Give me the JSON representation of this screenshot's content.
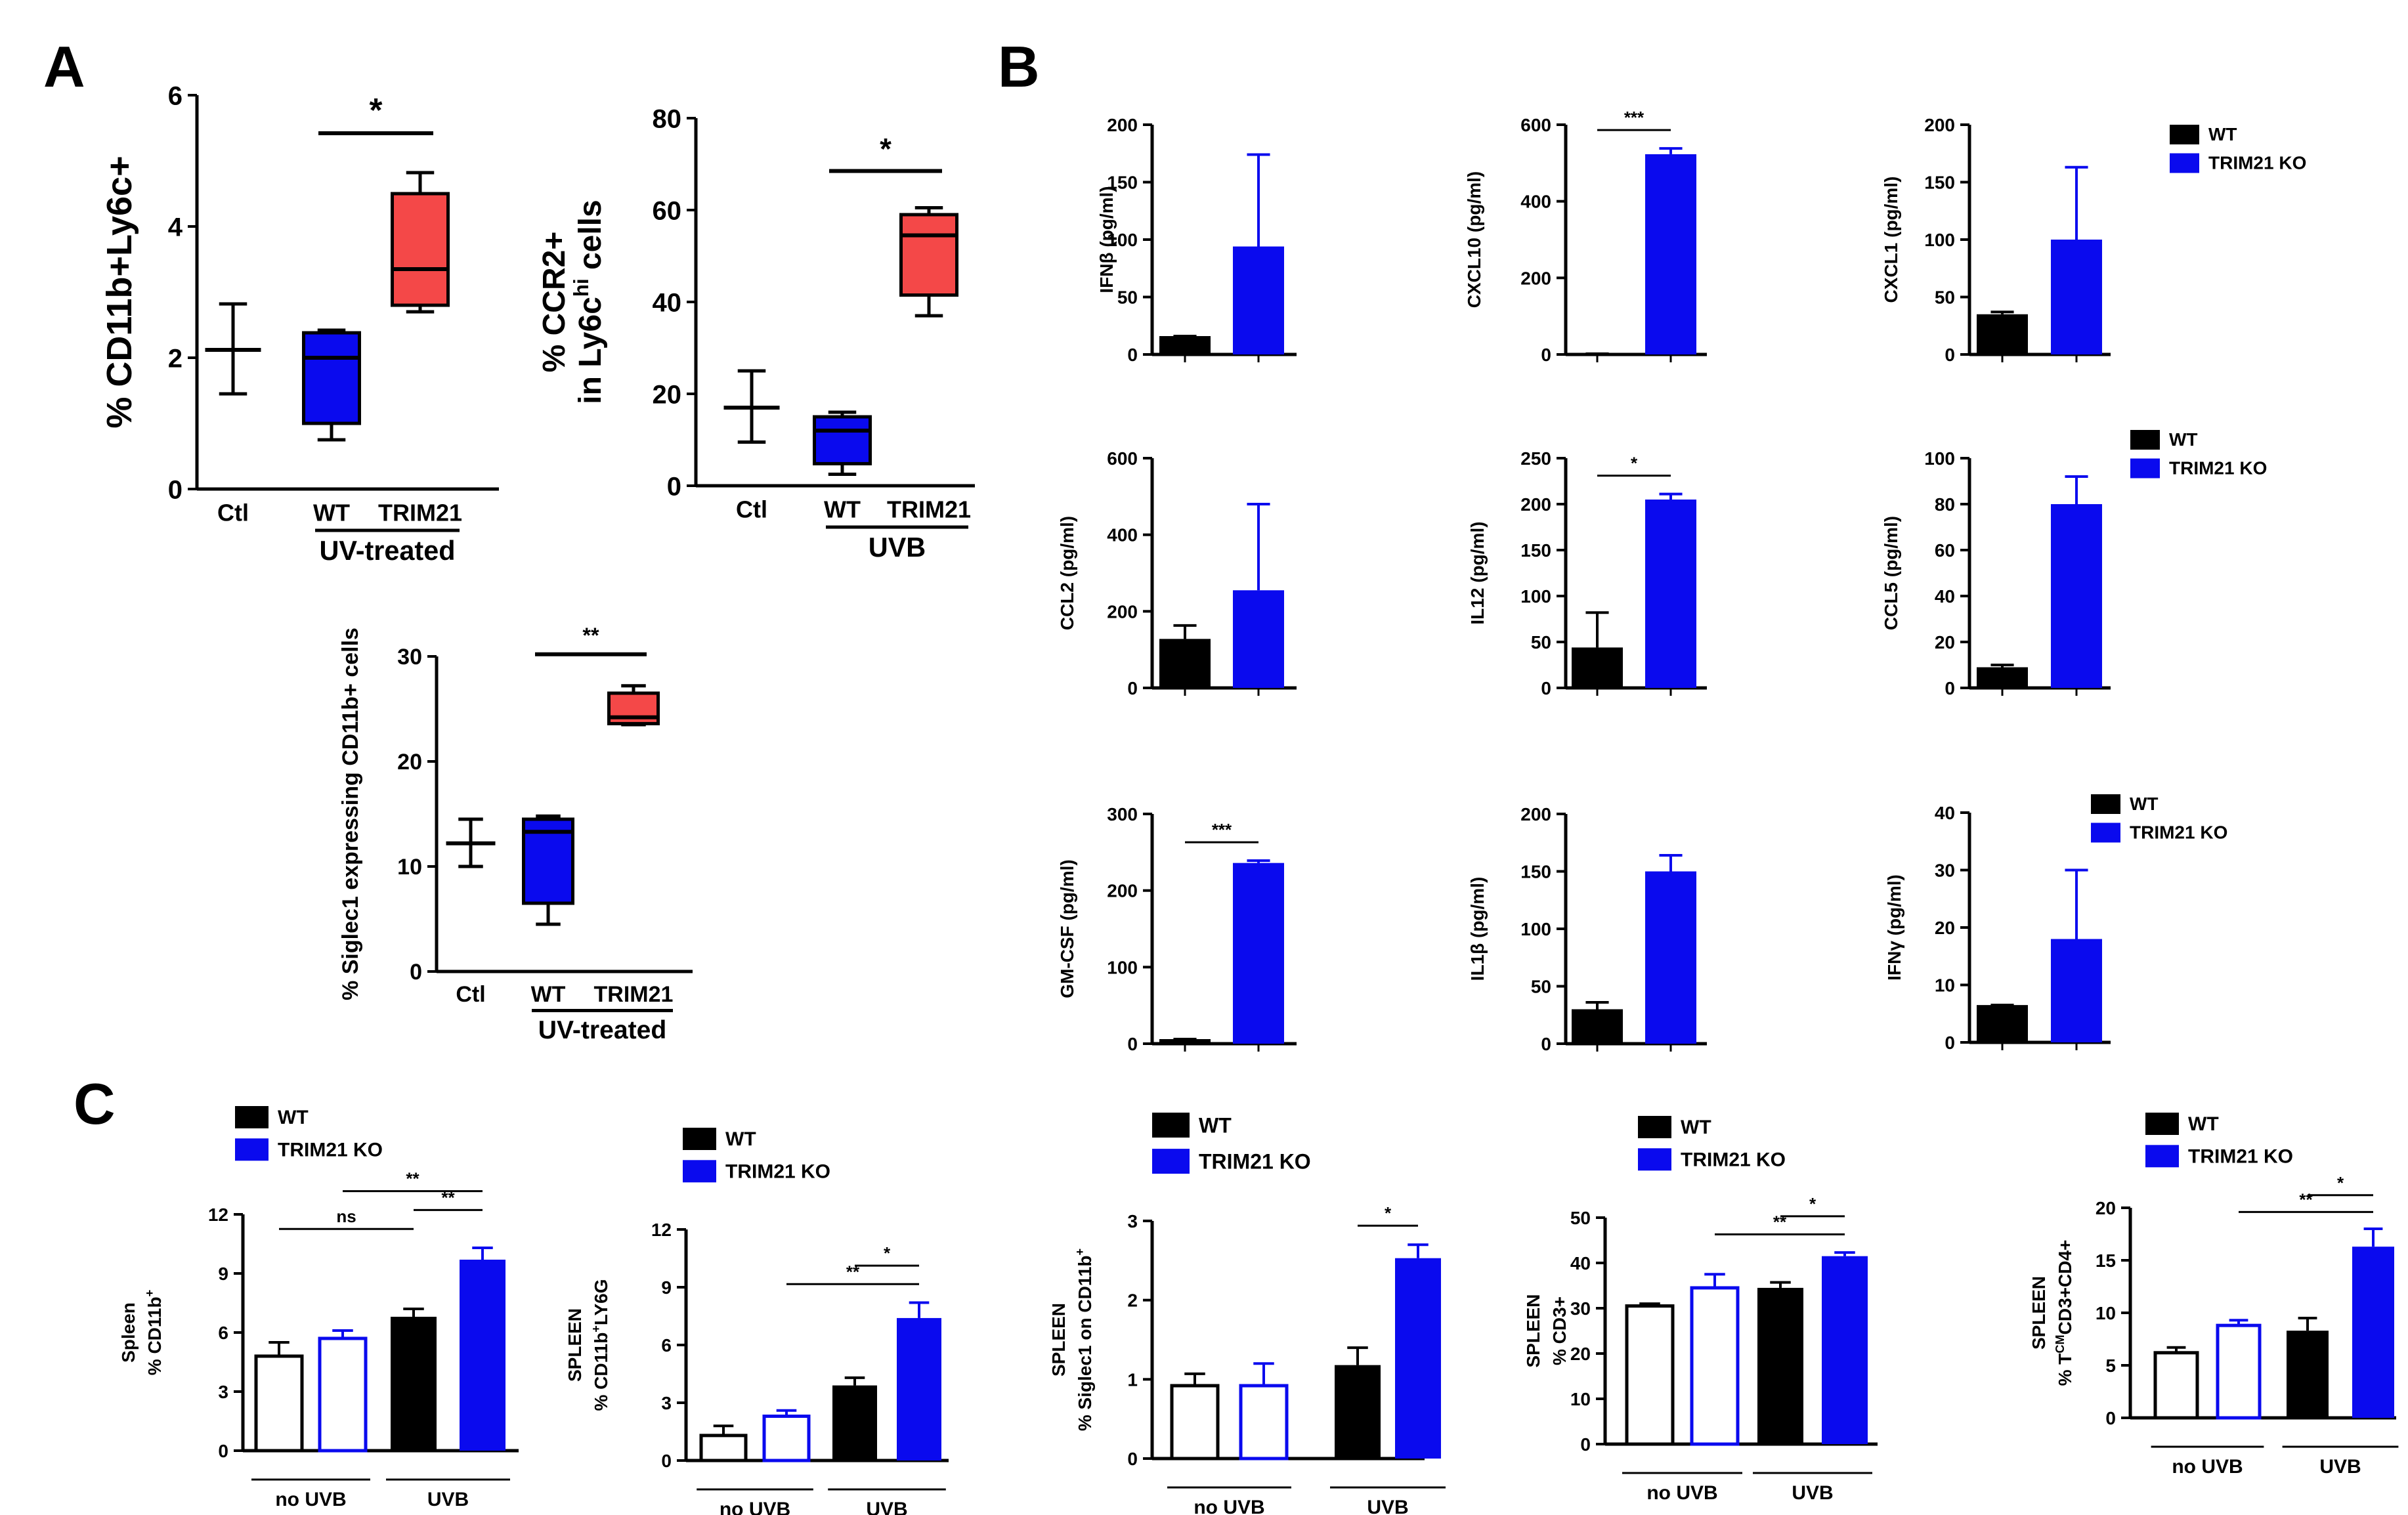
{
  "figure": {
    "panel_labels": [
      "A",
      "B",
      "C"
    ],
    "colors": {
      "wt": "#000000",
      "ko": "#0a0aee",
      "trim": "#f44848",
      "axis": "#000000"
    }
  },
  "chart_data": [
    {
      "id": "A1",
      "type": "box",
      "ylabel": "% CD11b+Ly6c+",
      "ylim": [
        0,
        6
      ],
      "yticks": [
        0,
        2,
        4,
        6
      ],
      "categories": [
        "Ctl",
        "WT",
        "TRIM21"
      ],
      "group_label": "UV-treated",
      "boxes": [
        {
          "name": "Ctl",
          "min": 1.45,
          "q1": 2.12,
          "median": 2.12,
          "q3": 2.12,
          "max": 2.82,
          "color": "none"
        },
        {
          "name": "WT",
          "min": 0.75,
          "q1": 1.0,
          "median": 2.0,
          "q3": 2.38,
          "max": 2.42,
          "color": "#0a0aee"
        },
        {
          "name": "TRIM21",
          "min": 2.7,
          "q1": 2.8,
          "median": 3.35,
          "q3": 4.5,
          "max": 4.82,
          "color": "#f44848"
        }
      ],
      "sig": [
        {
          "from": 1,
          "to": 2,
          "label": "*"
        }
      ]
    },
    {
      "id": "A2",
      "type": "box",
      "ylabel": "% CCR2+",
      "ylabel2": "in Ly6c",
      "ylabel2_sup": "hi",
      "ylabel2_tail": " cells",
      "ylim": [
        0,
        80
      ],
      "yticks": [
        0,
        20,
        40,
        60,
        80
      ],
      "categories": [
        "Ctl",
        "WT",
        "TRIM21"
      ],
      "group_label": "UVB",
      "boxes": [
        {
          "name": "Ctl",
          "min": 9.5,
          "q1": 17,
          "median": 17,
          "q3": 17,
          "max": 25,
          "color": "none"
        },
        {
          "name": "WT",
          "min": 2.5,
          "q1": 4.8,
          "median": 12,
          "q3": 15,
          "max": 16,
          "color": "#0a0aee"
        },
        {
          "name": "TRIM21",
          "min": 37,
          "q1": 41.5,
          "median": 54.5,
          "q3": 59,
          "max": 60.5,
          "color": "#f44848"
        }
      ],
      "sig": [
        {
          "from": 1,
          "to": 2,
          "label": "*"
        }
      ]
    },
    {
      "id": "A3",
      "type": "box",
      "ylabel": "% Siglec1 expressing CD11b+ cells",
      "ylim": [
        0,
        30
      ],
      "yticks": [
        0,
        10,
        20,
        30
      ],
      "categories": [
        "Ctl",
        "WT",
        "TRIM21"
      ],
      "group_label": "UV-treated",
      "boxes": [
        {
          "name": "Ctl",
          "min": 10,
          "q1": 12.2,
          "median": 12.2,
          "q3": 12.2,
          "max": 14.5,
          "color": "none"
        },
        {
          "name": "WT",
          "min": 4.5,
          "q1": 6.5,
          "median": 13.3,
          "q3": 14.5,
          "max": 14.8,
          "color": "#0a0aee"
        },
        {
          "name": "TRIM21",
          "min": 23.5,
          "q1": 23.6,
          "median": 24.2,
          "q3": 26.5,
          "max": 27.2,
          "color": "#f44848"
        }
      ],
      "sig": [
        {
          "from": 1,
          "to": 2,
          "label": "**"
        }
      ]
    },
    {
      "id": "B1",
      "type": "bar",
      "ylabel": "IFNβ (pg/ml)",
      "ylim": [
        0,
        200
      ],
      "yticks": [
        0,
        50,
        100,
        150,
        200
      ],
      "categories": [
        "WT",
        "TRIM21 KO"
      ],
      "values": [
        16,
        94
      ],
      "errors": [
        0,
        80
      ],
      "sig": []
    },
    {
      "id": "B2",
      "type": "bar",
      "ylabel": "CXCL10 (pg/ml)",
      "ylim": [
        0,
        600
      ],
      "yticks": [
        0,
        200,
        400,
        600
      ],
      "categories": [
        "WT",
        "TRIM21 KO"
      ],
      "values": [
        2,
        523
      ],
      "errors": [
        0,
        15
      ],
      "sig": [
        {
          "from": 0,
          "to": 1,
          "label": "***"
        }
      ]
    },
    {
      "id": "B3",
      "type": "bar",
      "ylabel": "CXCL1 (pg/ml)",
      "ylim": [
        0,
        200
      ],
      "yticks": [
        0,
        50,
        100,
        150,
        200
      ],
      "categories": [
        "WT",
        "TRIM21 KO"
      ],
      "values": [
        35,
        100
      ],
      "errors": [
        2,
        63
      ],
      "sig": []
    },
    {
      "id": "B4",
      "type": "bar",
      "ylabel": "CCL2 (pg/ml)",
      "ylim": [
        0,
        600
      ],
      "yticks": [
        0,
        200,
        400,
        600
      ],
      "categories": [
        "WT",
        "TRIM21 KO"
      ],
      "values": [
        128,
        255
      ],
      "errors": [
        35,
        225
      ],
      "sig": []
    },
    {
      "id": "B5",
      "type": "bar",
      "ylabel": "IL12 (pg/ml)",
      "ylim": [
        0,
        250
      ],
      "yticks": [
        0,
        50,
        100,
        150,
        200,
        250
      ],
      "categories": [
        "WT",
        "TRIM21 KO"
      ],
      "values": [
        44,
        205
      ],
      "errors": [
        38,
        6
      ],
      "sig": [
        {
          "from": 0,
          "to": 1,
          "label": "*"
        }
      ]
    },
    {
      "id": "B6",
      "type": "bar",
      "ylabel": "CCL5 (pg/ml)",
      "ylim": [
        0,
        100
      ],
      "yticks": [
        0,
        20,
        40,
        60,
        80,
        100
      ],
      "categories": [
        "WT",
        "TRIM21 KO"
      ],
      "values": [
        9,
        80
      ],
      "errors": [
        1,
        12
      ],
      "sig": []
    },
    {
      "id": "B7",
      "type": "bar",
      "ylabel": "GM-CSF (pg/ml)",
      "ylim": [
        0,
        300
      ],
      "yticks": [
        0,
        100,
        200,
        300
      ],
      "categories": [
        "WT",
        "TRIM21 KO"
      ],
      "values": [
        6,
        236
      ],
      "errors": [
        0,
        3
      ],
      "sig": [
        {
          "from": 0,
          "to": 1,
          "label": "***"
        }
      ]
    },
    {
      "id": "B8",
      "type": "bar",
      "ylabel": "IL1β (pg/ml)",
      "ylim": [
        0,
        200
      ],
      "yticks": [
        0,
        50,
        100,
        150,
        200
      ],
      "categories": [
        "WT",
        "TRIM21 KO"
      ],
      "values": [
        30,
        150
      ],
      "errors": [
        6,
        14
      ],
      "sig": []
    },
    {
      "id": "B9",
      "type": "bar",
      "ylabel": "IFNγ (pg/ml)",
      "ylim": [
        0,
        40
      ],
      "yticks": [
        0,
        10,
        20,
        30,
        40
      ],
      "categories": [
        "WT",
        "TRIM21 KO"
      ],
      "values": [
        6.5,
        18
      ],
      "errors": [
        0,
        12
      ],
      "sig": []
    },
    {
      "id": "C1",
      "type": "bar",
      "ylabel": "Spleen",
      "ylabel2": "% CD11b",
      "ylabel2_sup": "+",
      "ylabel2_tail": "",
      "ylim": [
        0,
        12
      ],
      "yticks": [
        0,
        3,
        6,
        9,
        12
      ],
      "categories": [
        "no UVB WT",
        "no UVB TRIM21 KO",
        "UVB WT",
        "UVB TRIM21 KO"
      ],
      "values": [
        4.8,
        5.7,
        6.8,
        9.7
      ],
      "errors": [
        0.7,
        0.4,
        0.4,
        0.6
      ],
      "group_labels": [
        "no UVB",
        "UVB"
      ],
      "sig": [
        {
          "from": 0,
          "to": 2,
          "label": "ns"
        },
        {
          "from": 2,
          "to": 3,
          "label": "**"
        },
        {
          "from": 1,
          "to": 3,
          "label": "**"
        }
      ]
    },
    {
      "id": "C2",
      "type": "bar",
      "ylabel": "SPLEEN",
      "ylabel2": "% CD11b",
      "ylabel2_sup": "+",
      "ylabel2_tail": "LY6G",
      "ylim": [
        0,
        12
      ],
      "yticks": [
        0,
        3,
        6,
        9,
        12
      ],
      "categories": [
        "no UVB WT",
        "no UVB TRIM21 KO",
        "UVB WT",
        "UVB TRIM21 KO"
      ],
      "values": [
        1.3,
        2.3,
        3.9,
        7.4
      ],
      "errors": [
        0.5,
        0.3,
        0.4,
        0.8
      ],
      "group_labels": [
        "no UVB",
        "UVB"
      ],
      "sig": [
        {
          "from": 1,
          "to": 3,
          "label": "**"
        },
        {
          "from": 2,
          "to": 3,
          "label": "*"
        }
      ]
    },
    {
      "id": "C3",
      "type": "bar",
      "ylabel": "SPLEEN",
      "ylabel2": "% Siglec1 on CD11b",
      "ylabel2_sup": "+",
      "ylabel2_tail": "",
      "ylim": [
        0,
        3
      ],
      "yticks": [
        0,
        1,
        2,
        3
      ],
      "categories": [
        "no UVB WT",
        "no UVB TRIM21 KO",
        "UVB WT",
        "UVB TRIM21 KO"
      ],
      "values": [
        0.92,
        0.92,
        1.18,
        2.53
      ],
      "errors": [
        0.15,
        0.28,
        0.22,
        0.17
      ],
      "group_labels": [
        "no UVB",
        "UVB"
      ],
      "sig": [
        {
          "from": 2,
          "to": 3,
          "label": "*"
        }
      ]
    },
    {
      "id": "C4",
      "type": "bar",
      "ylabel": "SPLEEN",
      "ylabel2": "% CD3+",
      "ylabel2_sup": "",
      "ylabel2_tail": "",
      "ylim": [
        0,
        50
      ],
      "yticks": [
        0,
        10,
        20,
        30,
        40,
        50
      ],
      "categories": [
        "no UVB WT",
        "no UVB TRIM21 KO",
        "UVB WT",
        "UVB TRIM21 KO"
      ],
      "values": [
        30.5,
        34.5,
        34.5,
        41.5
      ],
      "errors": [
        0.5,
        3,
        1.2,
        0.8
      ],
      "group_labels": [
        "no UVB",
        "UVB"
      ],
      "sig": [
        {
          "from": 1,
          "to": 3,
          "label": "**"
        },
        {
          "from": 2,
          "to": 3,
          "label": "*"
        }
      ]
    },
    {
      "id": "C5",
      "type": "bar",
      "ylabel": "SPLEEN",
      "ylabel2": "% T",
      "ylabel2_sup": "CM",
      "ylabel2_tail": "CD3+CD4+",
      "ylim": [
        0,
        20
      ],
      "yticks": [
        0,
        5,
        10,
        15,
        20
      ],
      "categories": [
        "no UVB WT",
        "no UVB TRIM21 KO",
        "UVB WT",
        "UVB TRIM21 KO"
      ],
      "values": [
        6.2,
        8.8,
        8.3,
        16.3
      ],
      "errors": [
        0.5,
        0.5,
        1.2,
        1.7
      ],
      "group_labels": [
        "no UVB",
        "UVB"
      ],
      "sig": [
        {
          "from": 1,
          "to": 3,
          "label": "**"
        },
        {
          "from": 2,
          "to": 3,
          "label": "*"
        }
      ]
    }
  ],
  "legends": [
    {
      "id": "LB1",
      "entries": [
        "WT",
        "TRIM21 KO"
      ]
    },
    {
      "id": "LB2",
      "entries": [
        "WT",
        "TRIM21 KO"
      ]
    },
    {
      "id": "LB3",
      "entries": [
        "WT",
        "TRIM21 KO"
      ]
    },
    {
      "id": "LC1",
      "entries": [
        "WT",
        "TRIM21 KO"
      ]
    },
    {
      "id": "LC2",
      "entries": [
        "WT",
        "TRIM21 KO"
      ]
    },
    {
      "id": "LC3",
      "entries": [
        "WT",
        "TRIM21 KO"
      ]
    },
    {
      "id": "LC4",
      "entries": [
        "WT",
        "TRIM21 KO"
      ]
    },
    {
      "id": "LC5",
      "entries": [
        "WT",
        "TRIM21 KO"
      ]
    }
  ]
}
